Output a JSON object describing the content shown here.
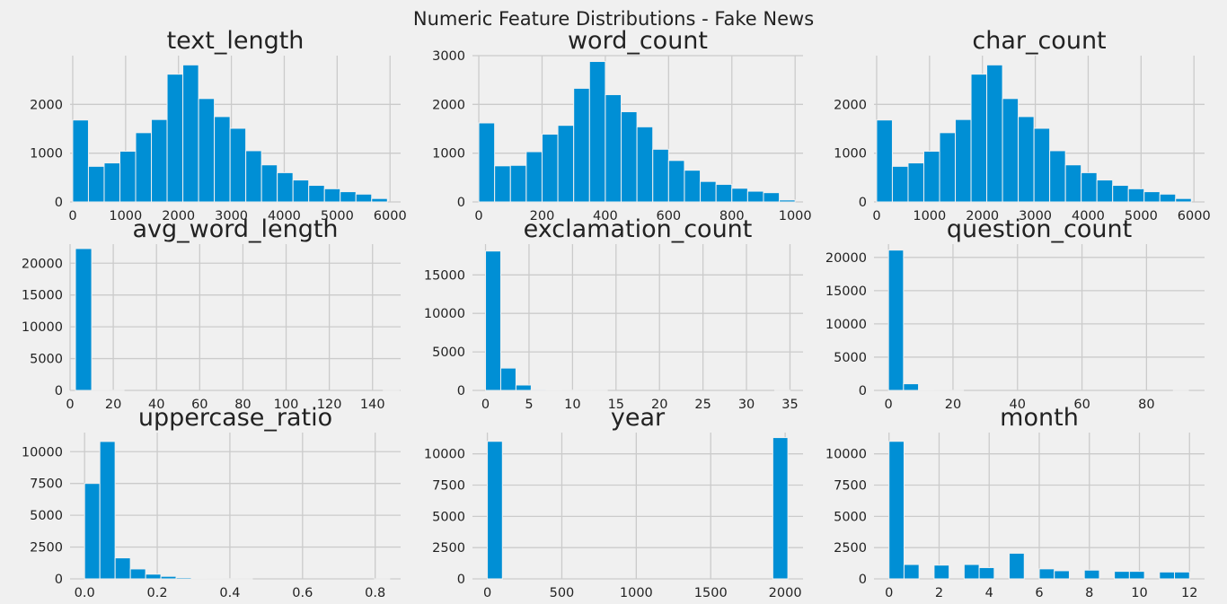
{
  "figure_title": "Numeric Feature Distributions - Fake News",
  "colors": {
    "background": "#f0f0f0",
    "bar": "#008fd5",
    "grid": "#cbcbcb"
  },
  "chart_data": [
    {
      "type": "bar",
      "title": "text_length",
      "xlim": [
        -50,
        6200
      ],
      "ylim": [
        0,
        3000
      ],
      "xticks": [
        0,
        1000,
        2000,
        3000,
        4000,
        5000,
        6000
      ],
      "yticks": [
        0,
        1000,
        2000
      ],
      "bin_edges": [
        0,
        297.5,
        595,
        892.5,
        1190,
        1487.5,
        1785,
        2082.5,
        2380,
        2677.5,
        2975,
        3272.5,
        3570,
        3867.5,
        4165,
        4462.5,
        4760,
        5057.5,
        5355,
        5652.5,
        5950
      ],
      "counts": [
        1680,
        730,
        800,
        1040,
        1420,
        1690,
        2620,
        2810,
        2120,
        1750,
        1510,
        1050,
        760,
        600,
        450,
        340,
        270,
        210,
        160,
        70
      ]
    },
    {
      "type": "bar",
      "title": "word_count",
      "xlim": [
        -20,
        1025
      ],
      "ylim": [
        0,
        3000
      ],
      "xticks": [
        0,
        200,
        400,
        600,
        800,
        1000
      ],
      "yticks": [
        0,
        1000,
        2000,
        3000
      ],
      "bin_edges": [
        0,
        50,
        100,
        150,
        200,
        250,
        300,
        350,
        400,
        450,
        500,
        550,
        600,
        650,
        700,
        750,
        800,
        850,
        900,
        950,
        1000
      ],
      "counts": [
        1620,
        740,
        750,
        1030,
        1390,
        1570,
        2330,
        2880,
        2200,
        1850,
        1540,
        1080,
        850,
        650,
        420,
        360,
        280,
        220,
        190,
        40
      ]
    },
    {
      "type": "bar",
      "title": "char_count",
      "xlim": [
        -50,
        6200
      ],
      "ylim": [
        0,
        3000
      ],
      "xticks": [
        0,
        1000,
        2000,
        3000,
        4000,
        5000,
        6000
      ],
      "yticks": [
        0,
        1000,
        2000
      ],
      "bin_edges": [
        0,
        297.5,
        595,
        892.5,
        1190,
        1487.5,
        1785,
        2082.5,
        2380,
        2677.5,
        2975,
        3272.5,
        3570,
        3867.5,
        4165,
        4462.5,
        4760,
        5057.5,
        5355,
        5652.5,
        5950
      ],
      "counts": [
        1680,
        730,
        800,
        1040,
        1420,
        1690,
        2620,
        2810,
        2120,
        1750,
        1510,
        1050,
        760,
        600,
        450,
        340,
        270,
        210,
        160,
        70
      ]
    },
    {
      "type": "bar",
      "title": "avg_word_length",
      "xlim": [
        0,
        153
      ],
      "ylim": [
        0,
        23000
      ],
      "xticks": [
        0,
        20,
        40,
        60,
        80,
        100,
        120,
        140
      ],
      "yticks": [
        0,
        5000,
        10000,
        15000,
        20000
      ],
      "bin_edges": [
        2.5,
        10,
        17.5,
        25,
        32.5,
        40,
        47.5,
        55,
        62.5,
        70,
        77.5,
        85,
        92.5,
        100,
        107.5,
        115,
        122.5,
        130,
        137.5,
        145,
        152.5
      ],
      "counts": [
        22300,
        30,
        10,
        0,
        0,
        0,
        0,
        0,
        0,
        0,
        0,
        0,
        0,
        0,
        0,
        0,
        0,
        0,
        0,
        2
      ]
    },
    {
      "type": "bar",
      "title": "exclamation_count",
      "xlim": [
        -1.5,
        36.5
      ],
      "ylim": [
        0,
        19000
      ],
      "xticks": [
        0,
        5,
        10,
        15,
        20,
        25,
        30,
        35
      ],
      "yticks": [
        0,
        5000,
        10000,
        15000
      ],
      "bin_edges": [
        0,
        1.75,
        3.5,
        5.25,
        7,
        8.75,
        10.5,
        12.25,
        14,
        15.75,
        17.5,
        19.25,
        21,
        22.75,
        24.5,
        26.25,
        28,
        29.75,
        31.5,
        33.25,
        35
      ],
      "counts": [
        18100,
        2900,
        700,
        120,
        50,
        20,
        10,
        5,
        0,
        0,
        0,
        0,
        0,
        0,
        0,
        0,
        0,
        0,
        0,
        2
      ]
    },
    {
      "type": "bar",
      "title": "question_count",
      "xlim": [
        -4.5,
        98
      ],
      "ylim": [
        0,
        22000
      ],
      "xticks": [
        0,
        20,
        40,
        60,
        80
      ],
      "yticks": [
        0,
        5000,
        10000,
        15000,
        20000
      ],
      "bin_edges": [
        0,
        4.65,
        9.3,
        13.95,
        18.6,
        23.25,
        27.9,
        32.55,
        37.2,
        41.85,
        46.5,
        51.15,
        55.8,
        60.45,
        65.1,
        69.75,
        74.4,
        79.05,
        83.7,
        88.35,
        93
      ],
      "counts": [
        21100,
        1000,
        80,
        20,
        5,
        0,
        0,
        0,
        0,
        0,
        0,
        0,
        0,
        0,
        0,
        0,
        0,
        0,
        0,
        1
      ]
    },
    {
      "type": "bar",
      "title": "uppercase_ratio",
      "xlim": [
        -0.04,
        0.87
      ],
      "ylim": [
        0,
        11500
      ],
      "xticks": [
        0.0,
        0.2,
        0.4,
        0.6,
        0.8
      ],
      "xticklabels": [
        "0.0",
        "0.2",
        "0.4",
        "0.6",
        "0.8"
      ],
      "yticks": [
        0,
        2500,
        5000,
        7500,
        10000
      ],
      "bin_edges": [
        0,
        0.042,
        0.084,
        0.126,
        0.168,
        0.21,
        0.252,
        0.294,
        0.336,
        0.378,
        0.42,
        0.462,
        0.504,
        0.546,
        0.588,
        0.63,
        0.672,
        0.714,
        0.756,
        0.798,
        0.84
      ],
      "counts": [
        7500,
        10800,
        1650,
        780,
        370,
        200,
        100,
        50,
        20,
        10,
        5,
        0,
        0,
        0,
        0,
        0,
        0,
        0,
        0,
        2
      ]
    },
    {
      "type": "bar",
      "title": "year",
      "xlim": [
        -100,
        2120
      ],
      "ylim": [
        0,
        11700
      ],
      "xticks": [
        0,
        500,
        1000,
        1500,
        2000
      ],
      "yticks": [
        0,
        2500,
        5000,
        7500,
        10000
      ],
      "bin_edges": [
        0,
        100.9,
        201.8,
        302.7,
        403.6,
        504.5,
        605.4,
        706.3,
        807.2,
        908.1,
        1009,
        1109.9,
        1210.8,
        1311.7,
        1412.6,
        1513.5,
        1614.4,
        1715.3,
        1816.2,
        1917.1,
        2018
      ],
      "counts": [
        11000,
        0,
        0,
        0,
        0,
        0,
        0,
        0,
        0,
        0,
        0,
        0,
        0,
        0,
        0,
        0,
        0,
        0,
        0,
        11300
      ]
    },
    {
      "type": "bar",
      "title": "month",
      "xlim": [
        -0.6,
        12.6
      ],
      "ylim": [
        0,
        11700
      ],
      "xticks": [
        0,
        2,
        4,
        6,
        8,
        10,
        12
      ],
      "yticks": [
        0,
        2500,
        5000,
        7500,
        10000
      ],
      "bin_edges": [
        0,
        0.6,
        1.2,
        1.8,
        2.4,
        3.0,
        3.6,
        4.2,
        4.8,
        5.4,
        6.0,
        6.6,
        7.2,
        7.8,
        8.4,
        9.0,
        9.6,
        10.2,
        10.8,
        11.4,
        12.0
      ],
      "counts": [
        11000,
        1150,
        0,
        1100,
        0,
        1150,
        900,
        0,
        2050,
        0,
        800,
        650,
        0,
        700,
        0,
        600,
        600,
        0,
        550,
        550
      ]
    }
  ]
}
